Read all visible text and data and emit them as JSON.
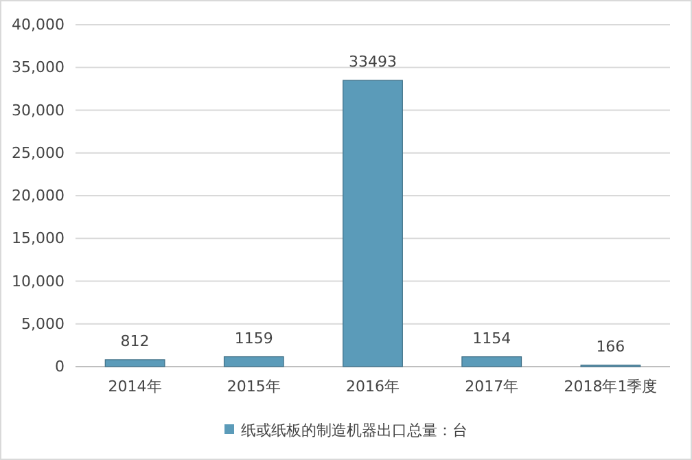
{
  "chart_data": {
    "type": "bar",
    "categories": [
      "2014年",
      "2015年",
      "2016年",
      "2017年",
      "2018年1季度"
    ],
    "series": [
      {
        "name": "纸或纸板的制造机器出口总量：台",
        "color": "#5b9bb9",
        "values": [
          812,
          1159,
          33493,
          1154,
          166
        ]
      }
    ],
    "ylim": [
      0,
      40000
    ],
    "yticks": [
      {
        "value": 0,
        "label": "0"
      },
      {
        "value": 5000,
        "label": "5,000"
      },
      {
        "value": 10000,
        "label": "10,000"
      },
      {
        "value": 15000,
        "label": "15,000"
      },
      {
        "value": 20000,
        "label": "20,000"
      },
      {
        "value": 25000,
        "label": "25,000"
      },
      {
        "value": 30000,
        "label": "30,000"
      },
      {
        "value": 35000,
        "label": "35,000"
      },
      {
        "value": 40000,
        "label": "40,000"
      }
    ],
    "grid": "y",
    "data_labels": true,
    "legend": "bottom"
  }
}
